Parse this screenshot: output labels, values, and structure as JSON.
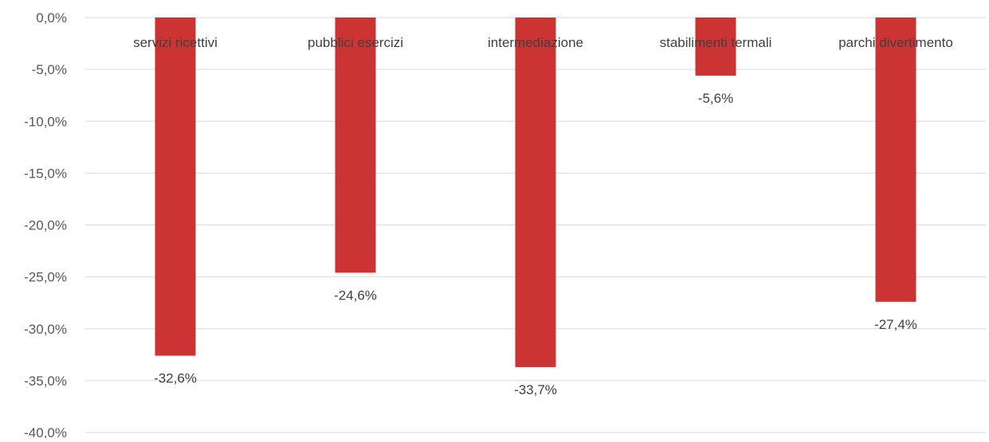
{
  "chart_data": {
    "type": "bar",
    "categories": [
      "servizi ricettivi",
      "pubblici esercizi",
      "intermediazione",
      "stabilimenti termali",
      "parchi divertimento"
    ],
    "values": [
      -32.6,
      -24.6,
      -33.7,
      -5.6,
      -27.4
    ],
    "data_labels": [
      "-32,6%",
      "-24,6%",
      "-33,7%",
      "-5,6%",
      "-27,4%"
    ],
    "y_ticks": [
      0,
      -5,
      -10,
      -15,
      -20,
      -25,
      -30,
      -35,
      -40
    ],
    "y_tick_labels": [
      "0,0%",
      "-5,0%",
      "-10,0%",
      "-15,0%",
      "-20,0%",
      "-25,0%",
      "-30,0%",
      "-35,0%",
      "-40,0%"
    ],
    "ylim": [
      -40,
      0
    ],
    "grid": true,
    "legend": "none",
    "bar_color": "#cc3333"
  }
}
